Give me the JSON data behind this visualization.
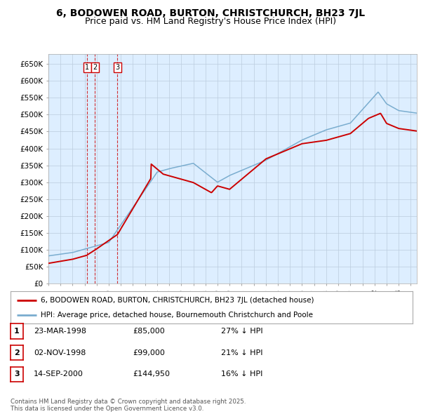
{
  "title": "6, BODOWEN ROAD, BURTON, CHRISTCHURCH, BH23 7JL",
  "subtitle": "Price paid vs. HM Land Registry's House Price Index (HPI)",
  "ylabel_ticks": [
    "£0",
    "£50K",
    "£100K",
    "£150K",
    "£200K",
    "£250K",
    "£300K",
    "£350K",
    "£400K",
    "£450K",
    "£500K",
    "£550K",
    "£600K",
    "£650K"
  ],
  "ylim": [
    0,
    680000
  ],
  "xlim": [
    1995,
    2025.5
  ],
  "price_paid_dates": [
    1998.22,
    1998.84,
    2000.71
  ],
  "price_paid_values": [
    85000,
    99000,
    144950
  ],
  "transaction_labels": [
    "1",
    "2",
    "3"
  ],
  "legend_red": "6, BODOWEN ROAD, BURTON, CHRISTCHURCH, BH23 7JL (detached house)",
  "legend_blue": "HPI: Average price, detached house, Bournemouth Christchurch and Poole",
  "table_data": [
    [
      "1",
      "23-MAR-1998",
      "£85,000",
      "27% ↓ HPI"
    ],
    [
      "2",
      "02-NOV-1998",
      "£99,000",
      "21% ↓ HPI"
    ],
    [
      "3",
      "14-SEP-2000",
      "£144,950",
      "16% ↓ HPI"
    ]
  ],
  "footer": "Contains HM Land Registry data © Crown copyright and database right 2025.\nThis data is licensed under the Open Government Licence v3.0.",
  "red_color": "#cc0000",
  "blue_color": "#7aadcf",
  "bg_color": "#ddeeff",
  "plot_bg": "#ffffff",
  "grid_color": "#bbccdd",
  "title_fontsize": 10,
  "subtitle_fontsize": 9
}
